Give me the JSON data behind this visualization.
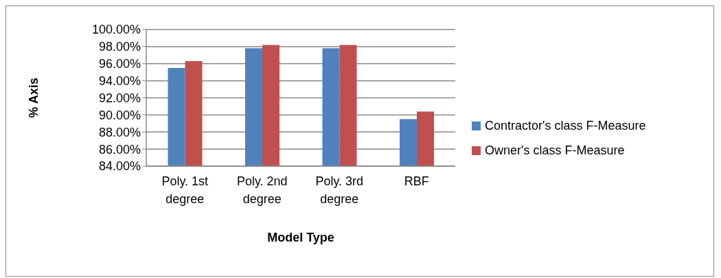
{
  "chart_data": {
    "type": "bar",
    "xlabel": "Model Type",
    "ylabel": "% Axis",
    "categories": [
      "Poly. 1st degree",
      "Poly. 2nd degree",
      "Poly. 3rd degree",
      "RBF"
    ],
    "series": [
      {
        "name": "Contractor's class F-Measure",
        "color": "#4f81bd",
        "values": [
          95.5,
          97.8,
          97.8,
          89.5
        ]
      },
      {
        "name": "Owner's class F-Measure",
        "color": "#c0504d",
        "values": [
          96.3,
          98.2,
          98.2,
          90.4
        ]
      }
    ],
    "ylim": [
      84,
      100
    ],
    "yticks": [
      {
        "value": 84,
        "label": "84.00%"
      },
      {
        "value": 86,
        "label": "86.00%"
      },
      {
        "value": 88,
        "label": "88.00%"
      },
      {
        "value": 90,
        "label": "90.00%"
      },
      {
        "value": 92,
        "label": "92.00%"
      },
      {
        "value": 94,
        "label": "94.00%"
      },
      {
        "value": 96,
        "label": "96.00%"
      },
      {
        "value": 98,
        "label": "98.00%"
      },
      {
        "value": 100,
        "label": "100.00%"
      }
    ],
    "grid": "y",
    "legend": "right"
  }
}
